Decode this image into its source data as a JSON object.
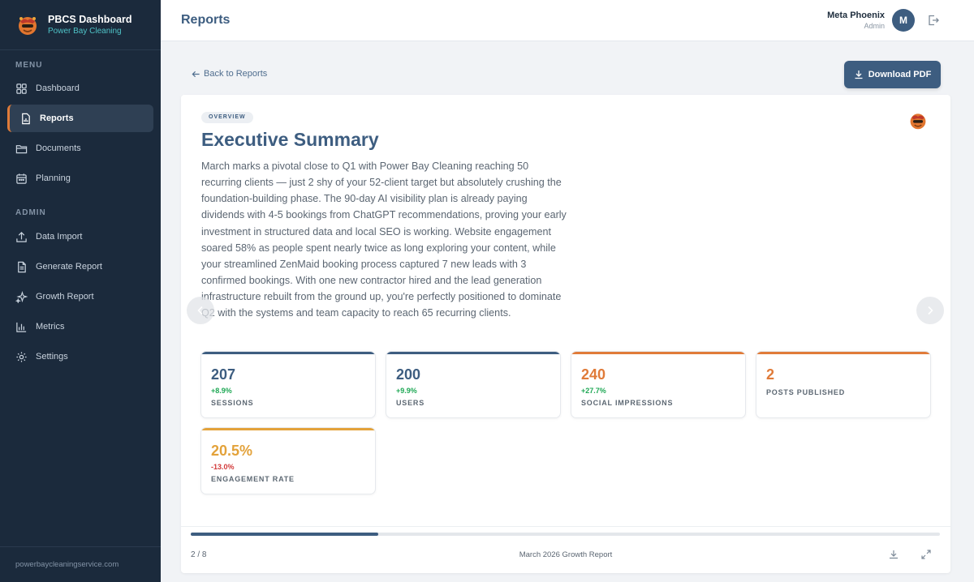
{
  "sidebar": {
    "brand_title": "PBCS Dashboard",
    "brand_subtitle": "Power Bay Cleaning",
    "menu_label": "MENU",
    "menu_items": [
      {
        "label": "Dashboard",
        "icon": "dashboard-icon"
      },
      {
        "label": "Reports",
        "icon": "reports-icon",
        "active": true
      },
      {
        "label": "Documents",
        "icon": "folder-icon"
      },
      {
        "label": "Planning",
        "icon": "calendar-icon"
      }
    ],
    "admin_label": "ADMIN",
    "admin_items": [
      {
        "label": "Data Import",
        "icon": "upload-icon"
      },
      {
        "label": "Generate Report",
        "icon": "document-icon"
      },
      {
        "label": "Growth Report",
        "icon": "sparkle-icon"
      },
      {
        "label": "Metrics",
        "icon": "bar-chart-icon"
      },
      {
        "label": "Settings",
        "icon": "gear-icon"
      }
    ],
    "footer": "powerbaycleaningservice.com"
  },
  "header": {
    "title": "Reports",
    "user_name": "Meta Phoenix",
    "user_role": "Admin",
    "avatar_initial": "M"
  },
  "toolbar": {
    "back_label": "Back to Reports",
    "download_label": "Download PDF"
  },
  "slide": {
    "badge": "OVERVIEW",
    "title": "Executive Summary",
    "summary": "March marks a pivotal close to Q1 with Power Bay Cleaning reaching 50 recurring clients — just 2 shy of your 52-client target but absolutely crushing the foundation-building phase. The 90-day AI visibility plan is already paying dividends with 4-5 bookings from ChatGPT recommendations, proving your early investment in structured data and local SEO is working. Website engagement soared 58% as people spent nearly twice as long exploring your content, while your streamlined ZenMaid booking process captured 7 new leads with 3 confirmed bookings. With one new contractor hired and the lead generation infrastructure rebuilt from the ground up, you're perfectly positioned to dominate Q2 with the systems and team capacity to reach 65 recurring clients.",
    "metrics": [
      {
        "value": "207",
        "change": "+8.9%",
        "label": "SESSIONS",
        "accent": "#3d5d80"
      },
      {
        "value": "200",
        "change": "+9.9%",
        "label": "USERS",
        "accent": "#3d5d80"
      },
      {
        "value": "240",
        "change": "+27.7%",
        "label": "SOCIAL IMPRESSIONS",
        "accent": "#e07b39"
      },
      {
        "value": "2",
        "change": "",
        "label": "POSTS PUBLISHED",
        "accent": "#e07b39"
      },
      {
        "value": "20.5%",
        "change": "-13.0%",
        "label": "ENGAGEMENT RATE",
        "accent": "#e3a23a"
      }
    ]
  },
  "footer": {
    "page_indicator": "2 / 8",
    "report_name": "March 2026 Growth Report",
    "progress": 0.25
  },
  "colors": {
    "sidebar_bg": "#1b2a3c",
    "primary": "#3d5d80",
    "orange": "#e07b39",
    "positive": "#1fa855",
    "negative": "#d23a3a"
  }
}
